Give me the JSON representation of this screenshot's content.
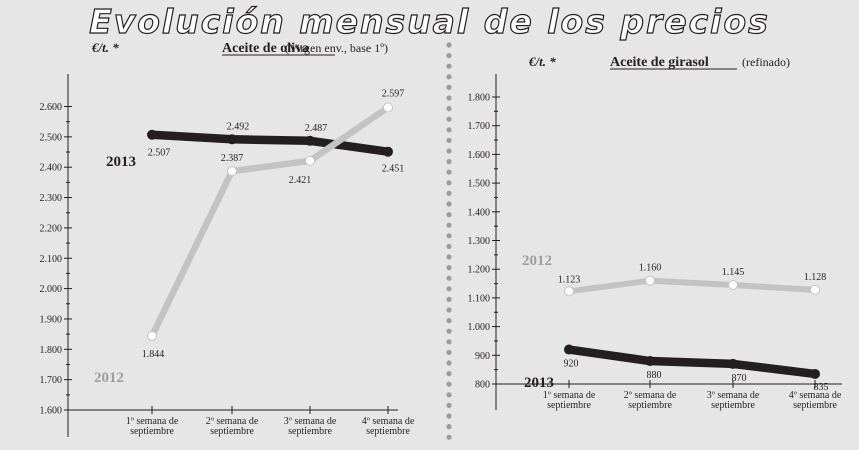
{
  "page": {
    "title": "Evolución mensual de los precios",
    "background": "#e6e6e7"
  },
  "chart_data": [
    {
      "type": "line",
      "unit_label": "€/t. *",
      "product": "Aceite de oliva",
      "product_note": "(Virgen env., base 1º)",
      "categories": [
        "1º semana de septiembre",
        "2º semana de septiembre",
        "3º semana de septiembre",
        "4º semana de septiembre"
      ],
      "ylim": [
        1600,
        2600
      ],
      "y_ticks": [
        "1.600",
        "1.700",
        "1.800",
        "1.900",
        "2.000",
        "2.100",
        "2.200",
        "2.300",
        "2.400",
        "2.500",
        "2.600"
      ],
      "series": [
        {
          "name": "2013",
          "color": "#231f20",
          "values": [
            2507,
            2492,
            2487,
            2451
          ],
          "value_labels": [
            "2.507",
            "2.492",
            "2.487",
            "2.451"
          ]
        },
        {
          "name": "2012",
          "color": "#c3c3c4",
          "values": [
            1844,
            2387,
            2421,
            2597
          ],
          "value_labels": [
            "1.844",
            "2.387",
            "2.421",
            "2.597"
          ]
        }
      ],
      "legend_labels": [
        {
          "text": "2013",
          "color": "#231f20"
        },
        {
          "text": "2012",
          "color": "#9d9d9e"
        }
      ]
    },
    {
      "type": "line",
      "unit_label": "€/t. *",
      "product": "Aceite de girasol",
      "product_note": "(refinado)",
      "categories": [
        "1º semana de septiembre",
        "2º semana de septiembre",
        "3º semana de septiembre",
        "4º semana de septiembre"
      ],
      "ylim": [
        800,
        1800
      ],
      "y_ticks": [
        "800",
        "900",
        "1.000",
        "1.100",
        "1.200",
        "1.300",
        "1.400",
        "1.500",
        "1.600",
        "1.700",
        "1.800"
      ],
      "series": [
        {
          "name": "2012",
          "color": "#c3c3c4",
          "values": [
            1123,
            1160,
            1145,
            1128
          ],
          "value_labels": [
            "1.123",
            "1.160",
            "1.145",
            "1.128"
          ]
        },
        {
          "name": "2013",
          "color": "#231f20",
          "values": [
            920,
            880,
            870,
            835
          ],
          "value_labels": [
            "920",
            "880",
            "870",
            "835"
          ]
        }
      ],
      "legend_labels": [
        {
          "text": "2012",
          "color": "#9d9d9e"
        },
        {
          "text": "2013",
          "color": "#231f20"
        }
      ]
    }
  ]
}
